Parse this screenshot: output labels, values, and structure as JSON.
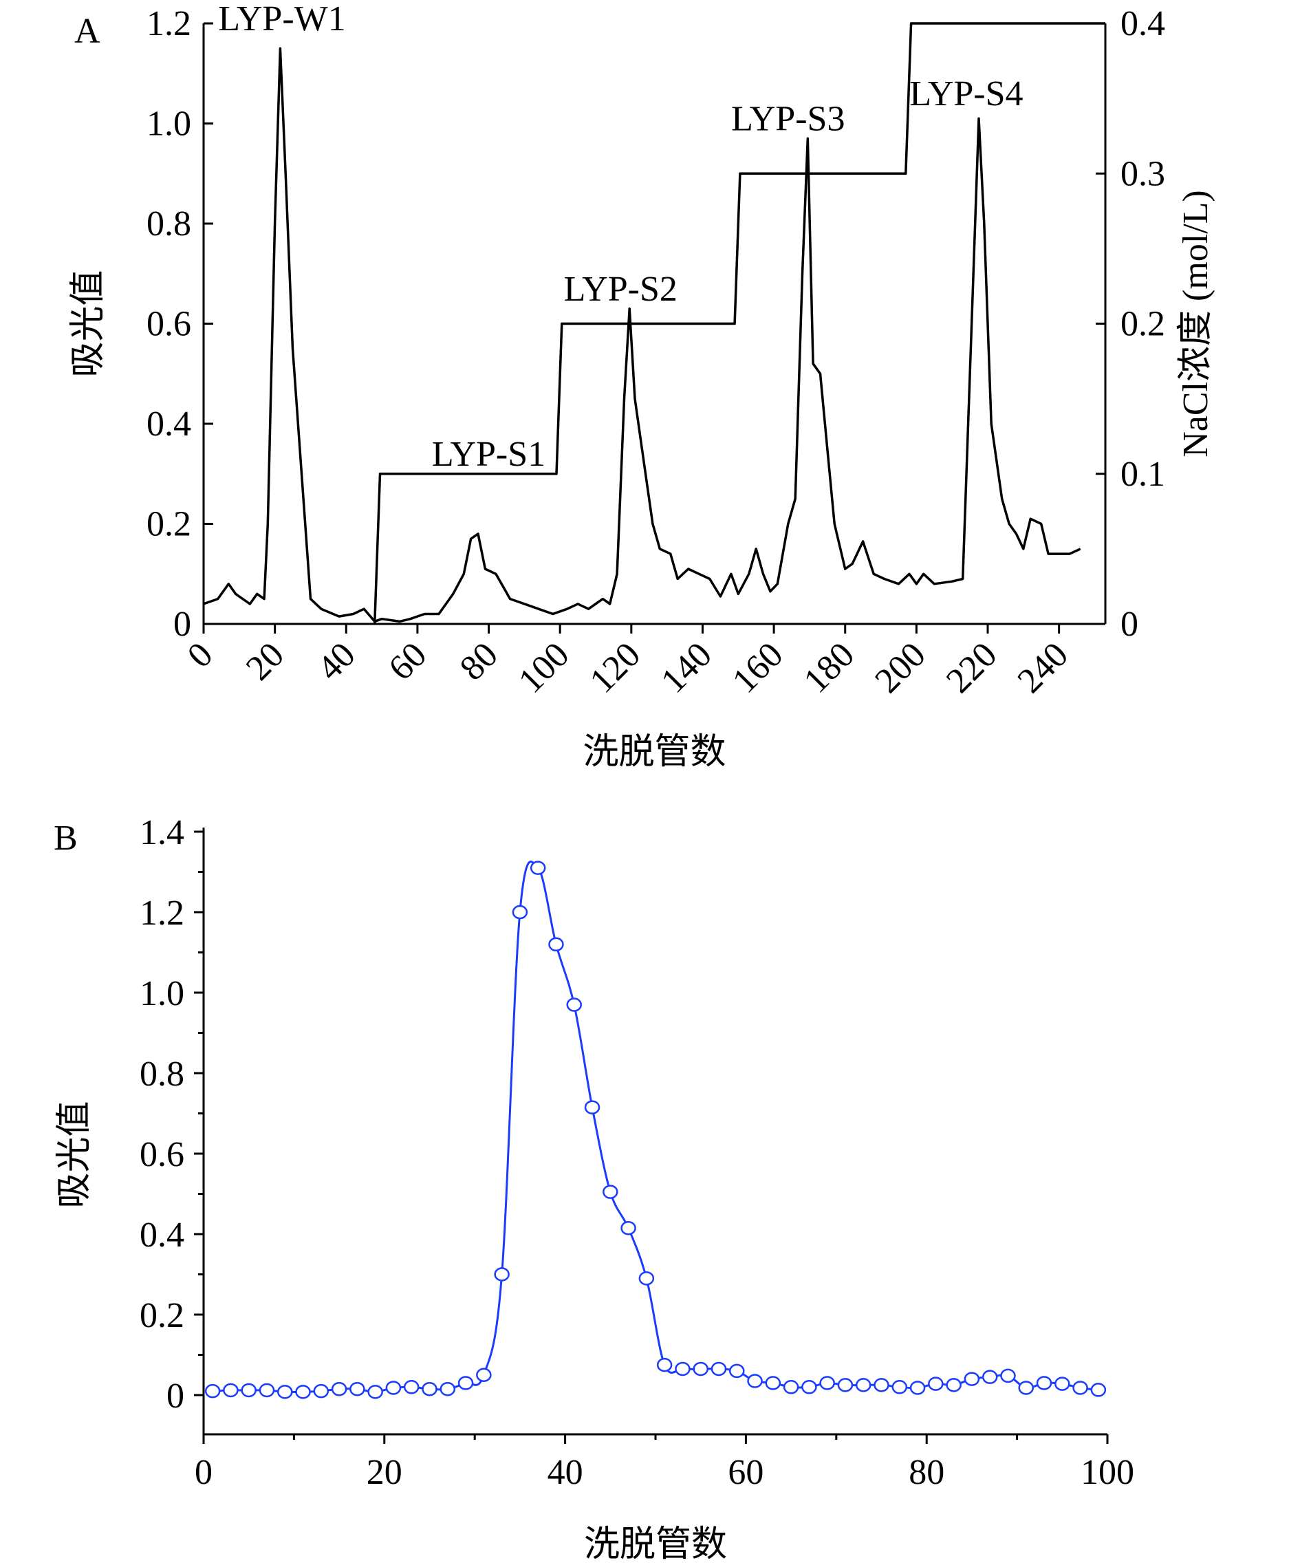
{
  "chart_data": [
    {
      "panel": "A",
      "type": "line",
      "xlabel": "洗脱管数",
      "ylabel": "吸光值",
      "y2label": "NaCl浓度 (mol/L)",
      "xlim": [
        0,
        253
      ],
      "ylim": [
        0,
        1.2
      ],
      "y2lim": [
        0,
        0.4
      ],
      "xticks": [
        0,
        20,
        40,
        60,
        80,
        100,
        120,
        140,
        160,
        180,
        200,
        220,
        240
      ],
      "yticks": [
        0,
        0.2,
        0.4,
        0.6,
        0.8,
        1.0,
        1.2
      ],
      "ytick_labels": [
        "0",
        "0.2",
        "0.4",
        "0.6",
        "0.8",
        "1.0",
        "1.2"
      ],
      "y2ticks": [
        0,
        0.1,
        0.2,
        0.3,
        0.4
      ],
      "y2tick_labels": [
        "0",
        "0.1",
        "0.2",
        "0.3",
        "0.4"
      ],
      "grid": false,
      "series": [
        {
          "name": "absorbance",
          "axis": "left",
          "color": "#000000",
          "x": [
            0,
            4,
            7,
            9,
            13,
            15,
            17,
            18,
            20,
            21.5,
            23,
            25,
            28,
            30,
            33,
            38,
            42,
            45,
            48,
            50,
            55,
            58,
            62,
            66,
            70,
            73,
            75,
            77,
            79,
            82,
            86,
            90,
            94,
            98,
            102,
            105,
            108,
            112,
            114,
            116,
            118,
            119.5,
            121,
            124,
            126,
            128,
            131,
            133,
            136,
            139,
            142,
            145,
            148,
            150,
            153,
            155,
            157,
            159,
            161,
            164,
            166,
            168,
            169.5,
            171,
            173,
            175,
            177,
            180,
            182,
            185,
            188,
            191,
            195,
            198,
            200,
            202,
            205,
            210,
            213,
            215,
            217.5,
            219,
            221,
            224,
            226,
            228,
            230,
            232,
            235,
            237,
            240,
            243,
            246
          ],
          "y": [
            0.04,
            0.05,
            0.08,
            0.06,
            0.04,
            0.06,
            0.05,
            0.2,
            0.8,
            1.15,
            0.9,
            0.55,
            0.25,
            0.05,
            0.03,
            0.015,
            0.02,
            0.03,
            0.005,
            0.01,
            0.005,
            0.01,
            0.02,
            0.02,
            0.06,
            0.1,
            0.17,
            0.18,
            0.11,
            0.1,
            0.05,
            0.04,
            0.03,
            0.02,
            0.03,
            0.04,
            0.03,
            0.05,
            0.04,
            0.1,
            0.45,
            0.63,
            0.45,
            0.3,
            0.2,
            0.15,
            0.14,
            0.09,
            0.11,
            0.1,
            0.09,
            0.055,
            0.1,
            0.06,
            0.1,
            0.15,
            0.1,
            0.065,
            0.08,
            0.2,
            0.25,
            0.7,
            0.97,
            0.52,
            0.5,
            0.35,
            0.2,
            0.11,
            0.12,
            0.165,
            0.1,
            0.09,
            0.08,
            0.1,
            0.08,
            0.1,
            0.08,
            0.085,
            0.09,
            0.5,
            1.01,
            0.8,
            0.4,
            0.25,
            0.2,
            0.18,
            0.15,
            0.21,
            0.2,
            0.14,
            0.14,
            0.14,
            0.15
          ]
        },
        {
          "name": "NaCl",
          "axis": "right",
          "color": "#000000",
          "x": [
            48,
            49.5,
            98,
            99,
            100.5,
            148,
            149,
            150.5,
            196,
            197,
            198.5,
            253
          ],
          "y": [
            0,
            0.1,
            0.1,
            0.1,
            0.2,
            0.2,
            0.2,
            0.3,
            0.3,
            0.3,
            0.4,
            0.4
          ]
        }
      ],
      "annotations": [
        {
          "text": "LYP-W1",
          "x": 22,
          "y": 1.2
        },
        {
          "text": "LYP-S1",
          "x": 80,
          "y": 0.33
        },
        {
          "text": "LYP-S2",
          "x": 117,
          "y": 0.66
        },
        {
          "text": "LYP-S3",
          "x": 164,
          "y": 1.0
        },
        {
          "text": "LYP-S4",
          "x": 214,
          "y": 1.05
        }
      ]
    },
    {
      "panel": "B",
      "type": "line",
      "xlabel": "洗脱管数",
      "ylabel": "吸光值",
      "xlim": [
        0,
        100
      ],
      "ylim": [
        -0.1,
        1.4
      ],
      "xticks": [
        0,
        20,
        40,
        60,
        80,
        100
      ],
      "yticks": [
        0,
        0.2,
        0.4,
        0.6,
        0.8,
        1.0,
        1.2,
        1.4
      ],
      "ytick_labels": [
        "0",
        "0.2",
        "0.4",
        "0.6",
        "0.8",
        "1.0",
        "1.2",
        "1.4"
      ],
      "grid": false,
      "series": [
        {
          "name": "absorbance",
          "color": "#1a3cff",
          "marker": "open-circle",
          "x": [
            1,
            3,
            5,
            7,
            9,
            11,
            13,
            15,
            17,
            19,
            21,
            23,
            25,
            27,
            29,
            31,
            33,
            35,
            37,
            39,
            41,
            43,
            45,
            47,
            49,
            51,
            53,
            55,
            57,
            59,
            61,
            63,
            65,
            67,
            69,
            71,
            73,
            75,
            77,
            79,
            81,
            83,
            85,
            87,
            89,
            91,
            93,
            95,
            97,
            99
          ],
          "y": [
            0.01,
            0.012,
            0.012,
            0.012,
            0.008,
            0.008,
            0.01,
            0.015,
            0.015,
            0.008,
            0.018,
            0.02,
            0.015,
            0.015,
            0.03,
            0.05,
            0.3,
            1.2,
            1.31,
            1.12,
            0.97,
            0.715,
            0.505,
            0.415,
            0.29,
            0.075,
            0.065,
            0.065,
            0.065,
            0.06,
            0.035,
            0.03,
            0.02,
            0.02,
            0.03,
            0.025,
            0.025,
            0.025,
            0.02,
            0.018,
            0.028,
            0.025,
            0.04,
            0.045,
            0.048,
            0.018,
            0.03,
            0.028,
            0.018,
            0.013
          ]
        }
      ]
    }
  ]
}
